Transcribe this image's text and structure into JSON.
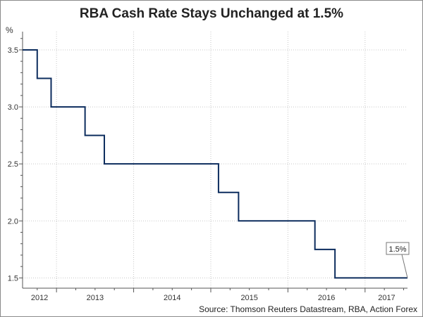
{
  "chart_data": {
    "type": "line",
    "title": "RBA Cash Rate Stays Unchanged at 1.5%",
    "ylabel": "%",
    "xlabel": "",
    "source": "Source: Thomson Reuters Datastream, RBA, Action Forex",
    "xlim": [
      2012.56,
      2017.55
    ],
    "ylim": [
      1.41,
      3.66
    ],
    "yticks": [
      1.5,
      2.0,
      2.5,
      3.0,
      3.5
    ],
    "ytick_labels": [
      "1.5",
      "2.0",
      "2.5",
      "3.0",
      "3.5"
    ],
    "xtick_labels": [
      {
        "label": "2012",
        "center": 2012.78
      },
      {
        "label": "2013",
        "center": 2013.5
      },
      {
        "label": "2014",
        "center": 2014.5
      },
      {
        "label": "2015",
        "center": 2015.5
      },
      {
        "label": "2016",
        "center": 2016.5
      },
      {
        "label": "2017",
        "center": 2017.28
      }
    ],
    "year_gridlines": [
      2013,
      2014,
      2015,
      2016,
      2017
    ],
    "grid": true,
    "series": [
      {
        "name": "RBA Cash Rate",
        "color": "#0d2d5e",
        "step": true,
        "x": [
          2012.56,
          2012.75,
          2012.93,
          2013.37,
          2013.62,
          2015.1,
          2015.36,
          2016.35,
          2016.61,
          2017.55
        ],
        "y": [
          3.5,
          3.25,
          3.0,
          2.75,
          2.5,
          2.25,
          2.0,
          1.75,
          1.5,
          1.5
        ]
      }
    ],
    "annotation": {
      "text": "1.5%",
      "x": 2017.55,
      "y": 1.5
    }
  }
}
